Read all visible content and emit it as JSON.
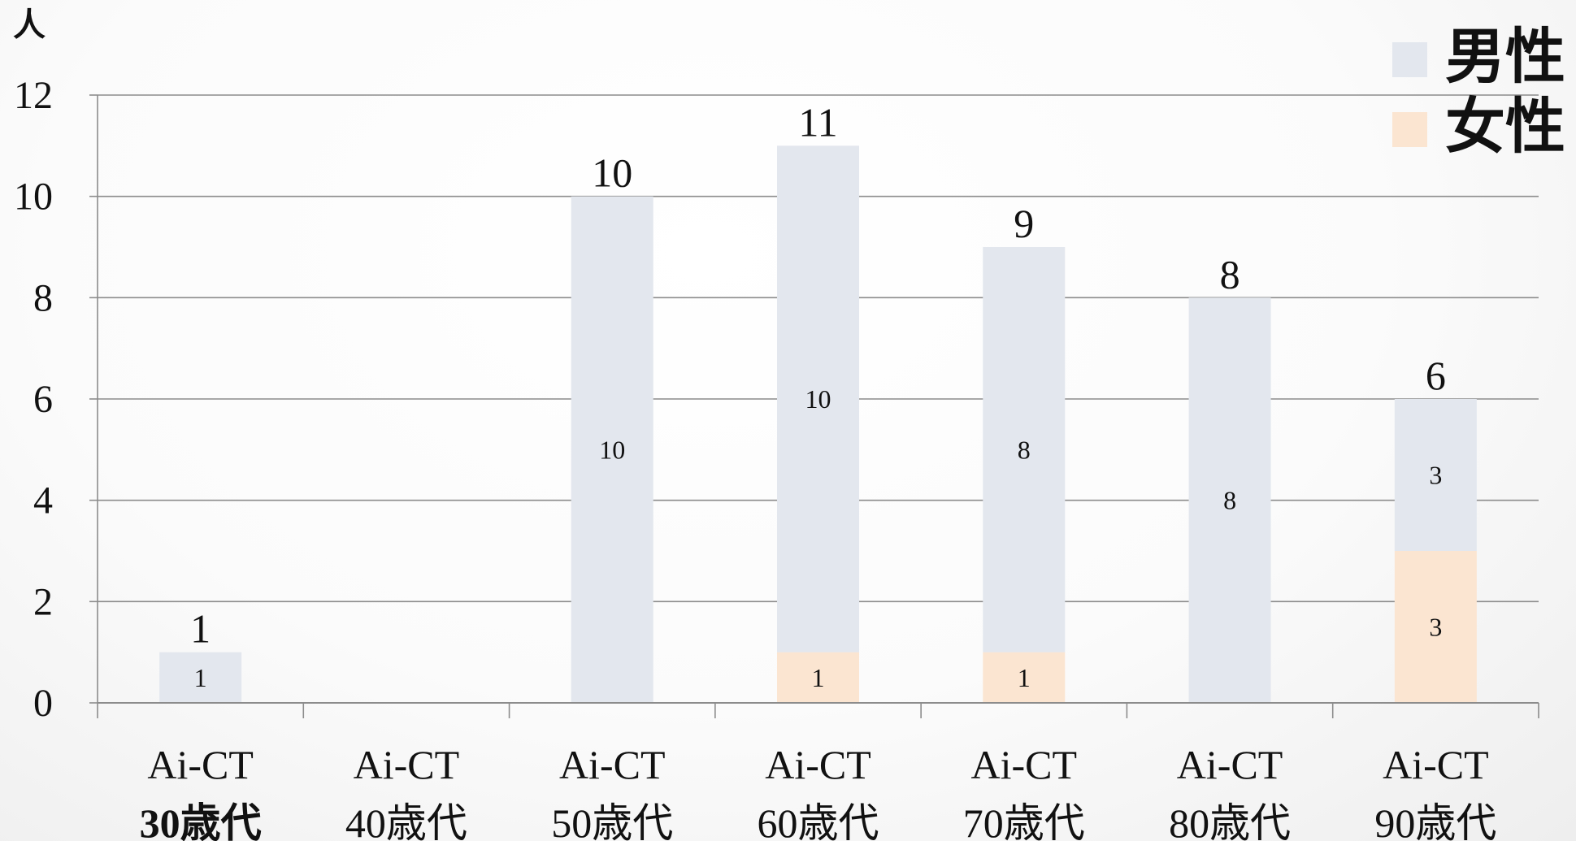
{
  "chart_data": {
    "type": "bar",
    "stacked": true,
    "ylabel": "人",
    "ylim": [
      0,
      12
    ],
    "yticks": [
      0,
      2,
      4,
      6,
      8,
      10,
      12
    ],
    "grid": true,
    "legend_position": "top-right",
    "categories": [
      {
        "line1": "Ai-CT",
        "line2": "30歳代"
      },
      {
        "line1": "Ai-CT",
        "line2": "40歳代"
      },
      {
        "line1": "Ai-CT",
        "line2": "50歳代"
      },
      {
        "line1": "Ai-CT",
        "line2": "60歳代"
      },
      {
        "line1": "Ai-CT",
        "line2": "70歳代"
      },
      {
        "line1": "Ai-CT",
        "line2": "80歳代"
      },
      {
        "line1": "Ai-CT",
        "line2": "90歳代"
      }
    ],
    "series": [
      {
        "name": "女性",
        "color": "#fbe5d1",
        "values": [
          0,
          0,
          0,
          1,
          1,
          0,
          3
        ]
      },
      {
        "name": "男性",
        "color": "#e3e7ee",
        "values": [
          1,
          0,
          10,
          10,
          8,
          8,
          3
        ]
      }
    ],
    "totals": [
      1,
      null,
      10,
      11,
      9,
      8,
      6
    ],
    "legend_order": [
      "男性",
      "女性"
    ]
  }
}
